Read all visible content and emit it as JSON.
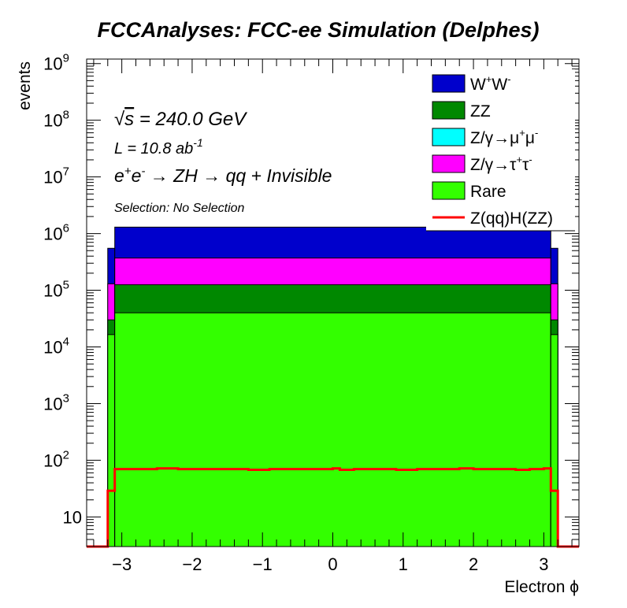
{
  "chart_data": {
    "type": "bar",
    "stacked": true,
    "title": "FCCAnalyses: FCC-ee Simulation (Delphes)",
    "xlabel": "Electron ϕ",
    "ylabel": "events",
    "xlim": [
      -3.5,
      3.5
    ],
    "ylim": [
      3,
      1200000000
    ],
    "yscale": "log",
    "grid": false,
    "legend_position": "top-right",
    "x_ticks": [
      {
        "value": -3,
        "label": "−3"
      },
      {
        "value": -2,
        "label": "−2"
      },
      {
        "value": -1,
        "label": "−1"
      },
      {
        "value": 0,
        "label": "0"
      },
      {
        "value": 1,
        "label": "1"
      },
      {
        "value": 2,
        "label": "2"
      },
      {
        "value": 3,
        "label": "3"
      }
    ],
    "y_ticks": [
      {
        "value": 10,
        "base": "10",
        "exp": ""
      },
      {
        "value": 100,
        "base": "10",
        "exp": "2"
      },
      {
        "value": 1000,
        "base": "10",
        "exp": "3"
      },
      {
        "value": 10000,
        "base": "10",
        "exp": "4"
      },
      {
        "value": 100000,
        "base": "10",
        "exp": "5"
      },
      {
        "value": 1000000,
        "base": "10",
        "exp": "6"
      },
      {
        "value": 10000000,
        "base": "10",
        "exp": "7"
      },
      {
        "value": 100000000,
        "base": "10",
        "exp": "8"
      },
      {
        "value": 1000000000,
        "base": "10",
        "exp": "9"
      }
    ],
    "annotations": {
      "sqrt_s": {
        "root": "√",
        "s": "s",
        "rest": " = 240.0 GeV"
      },
      "lumi": {
        "pre": "L = 10.8 ab",
        "exp": "-1"
      },
      "process": {
        "e1": "e",
        "e1sup": "+",
        "e2": "e",
        "e2sup": "-",
        "rest": " → ZH → qq + Invisible"
      },
      "selection": "Selection: No Selection"
    },
    "bins": [
      {
        "x0": -3.5,
        "x1": -3.2,
        "rare": 0,
        "zz": 0,
        "tautau": 0,
        "ww": 0,
        "signal": 0
      },
      {
        "x0": -3.2,
        "x1": -3.1,
        "rare": 16500,
        "zz": 30000,
        "tautau": 130000,
        "ww": 550000,
        "signal": 29
      },
      {
        "x0": -3.1,
        "x1": 3.1,
        "rare": 40000,
        "zz": 125000,
        "tautau": 370000,
        "ww": 1300000,
        "signal": 70
      },
      {
        "x0": 3.1,
        "x1": 3.2,
        "rare": 16500,
        "zz": 30000,
        "tautau": 130000,
        "ww": 550000,
        "signal": 29
      },
      {
        "x0": 3.2,
        "x1": 3.5,
        "rare": 0,
        "zz": 0,
        "tautau": 0,
        "ww": 0,
        "signal": 0
      }
    ],
    "signal_steps": [
      [
        -3.5,
        0
      ],
      [
        -3.2,
        29
      ],
      [
        -3.1,
        70
      ],
      [
        -2.7,
        70
      ],
      [
        -2.5,
        72
      ],
      [
        -2.2,
        70
      ],
      [
        -1.5,
        70
      ],
      [
        -1.2,
        68
      ],
      [
        -0.9,
        70
      ],
      [
        -0.3,
        70
      ],
      [
        0.0,
        72
      ],
      [
        0.1,
        68
      ],
      [
        0.3,
        70
      ],
      [
        0.9,
        68
      ],
      [
        1.2,
        70
      ],
      [
        1.7,
        70
      ],
      [
        1.8,
        72
      ],
      [
        2.0,
        70
      ],
      [
        2.6,
        68
      ],
      [
        2.8,
        70
      ],
      [
        3.0,
        72
      ],
      [
        3.1,
        29
      ],
      [
        3.2,
        0
      ],
      [
        3.5,
        0
      ]
    ],
    "legend": [
      {
        "key": "ww",
        "label": "W",
        "sup1": "+",
        "mid": "W",
        "sup2": "-",
        "color": "#0000CC",
        "style": "box"
      },
      {
        "key": "zz",
        "label": "ZZ",
        "color": "#008800",
        "style": "box"
      },
      {
        "key": "mumu",
        "label": "Z/γ→μ",
        "sup1": "+",
        "mid": "μ",
        "sup2": "-",
        "color": "#00FFFF",
        "style": "box"
      },
      {
        "key": "tautau",
        "label": "Z/γ→τ",
        "sup1": "+",
        "mid": "τ",
        "sup2": "-",
        "color": "#FF00FF",
        "style": "box"
      },
      {
        "key": "rare",
        "label": "Rare",
        "color": "#33FF00",
        "style": "box"
      },
      {
        "key": "signal",
        "label": "Z(qq)H(ZZ)",
        "color": "#FF0000",
        "style": "line"
      }
    ]
  }
}
